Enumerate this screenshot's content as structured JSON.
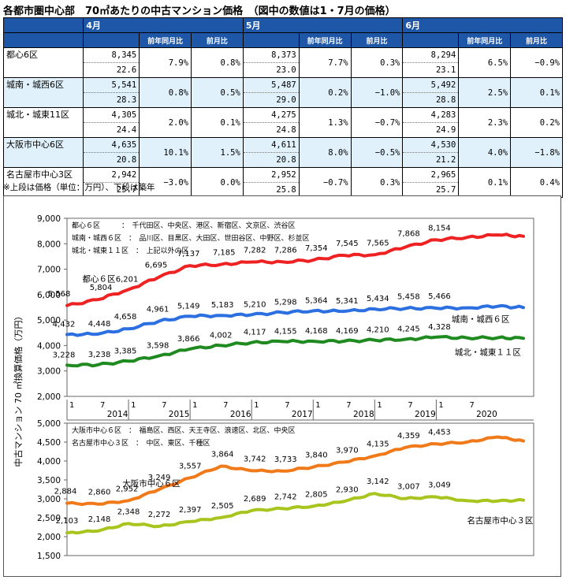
{
  "title": "各都市圏中心部　70㎡あたりの中古マンション価格　（図中の数値は1・7月の価格）",
  "note": "※上段は価格（単位：万円）、下段は築年",
  "table": {
    "months": [
      "4月",
      "5月",
      "6月"
    ],
    "sub_headers": [
      "前年同月比",
      "前月比"
    ],
    "rows": [
      {
        "name": "都心6区",
        "cells": [
          [
            "8,345",
            "22.6",
            "7.9%",
            "0.8%"
          ],
          [
            "8,373",
            "23.0",
            "7.7%",
            "0.3%"
          ],
          [
            "8,294",
            "23.1",
            "6.5%",
            "−0.9%"
          ]
        ]
      },
      {
        "name": "城南・城西6区",
        "cells": [
          [
            "5,541",
            "28.3",
            "0.8%",
            "0.5%"
          ],
          [
            "5,487",
            "29.0",
            "0.2%",
            "−1.0%"
          ],
          [
            "5,492",
            "28.8",
            "2.5%",
            "0.1%"
          ]
        ]
      },
      {
        "name": "城北・城東11区",
        "cells": [
          [
            "4,305",
            "24.4",
            "2.0%",
            "0.1%"
          ],
          [
            "4,275",
            "24.8",
            "1.3%",
            "−0.7%"
          ],
          [
            "4,283",
            "24.9",
            "2.3%",
            "0.2%"
          ]
        ]
      },
      {
        "name": "大阪市中心6区",
        "cells": [
          [
            "4,635",
            "20.8",
            "10.1%",
            "1.5%"
          ],
          [
            "4,611",
            "20.8",
            "8.0%",
            "−0.5%"
          ],
          [
            "4,530",
            "21.2",
            "4.0%",
            "−1.8%"
          ]
        ]
      },
      {
        "name": "名古屋市中心3区",
        "cells": [
          [
            "2,942",
            "25.7",
            "−3.0%",
            "0.0%"
          ],
          [
            "2,952",
            "25.8",
            "−0.7%",
            "0.3%"
          ],
          [
            "2,965",
            "25.7",
            "0.1%",
            "0.4%"
          ]
        ]
      }
    ]
  },
  "chart": {
    "ylabel": "中古マンション 70 ㎡換算価格（万円）"
  },
  "chart_data": [
    {
      "type": "line",
      "ylim": [
        2000,
        9000
      ],
      "yticks": [
        "2,000",
        "3,000",
        "4,000",
        "5,000",
        "6,000",
        "7,000",
        "8,000",
        "9,000"
      ],
      "xlim": [
        2013.0,
        2020.583
      ],
      "x_tick_month_labels": [
        "1",
        "7",
        "1",
        "7",
        "1",
        "7",
        "1",
        "7",
        "1",
        "7",
        "1",
        "7",
        "1",
        "7"
      ],
      "x_year_labels": [
        "2014",
        "2015",
        "2016",
        "2017",
        "2018",
        "2019",
        "2020"
      ],
      "legend_lines": [
        "都心６区　　　：　千代田区、中央区、港区、新宿区、文京区、渋谷区",
        "城南・城西６区　：　品川区、目黒区、大田区、世田谷区、中野区、杉並区",
        "城北・城東１１区　：　上記以外の区"
      ],
      "series": [
        {
          "name": "都心６区",
          "color": "#ee2222",
          "labels": [
            "5,568",
            "5,804",
            "6,201",
            "6,695",
            "7,137",
            "7,185",
            "7,282",
            "7,286",
            "7,354",
            "7,545",
            "7,565",
            "7,868",
            "8,154"
          ],
          "x": [
            2013.0,
            2013.5,
            2014.0,
            2014.5,
            2015.0,
            2015.5,
            2016.0,
            2016.5,
            2017.0,
            2017.5,
            2018.0,
            2018.5,
            2019.0,
            2019.5,
            2020.0,
            2020.417
          ],
          "y": [
            5568,
            5804,
            6201,
            6695,
            7137,
            7185,
            7282,
            7286,
            7354,
            7545,
            7565,
            7868,
            8154,
            8250,
            8345,
            8294
          ]
        },
        {
          "name": "城南・城西６区",
          "color": "#2b6fe0",
          "labels": [
            "4,432",
            "4,448",
            "4,658",
            "4,961",
            "5,149",
            "5,183",
            "5,210",
            "5,298",
            "5,364",
            "5,341",
            "5,434",
            "5,458",
            "5,466"
          ],
          "x": [
            2013.0,
            2013.5,
            2014.0,
            2014.5,
            2015.0,
            2015.5,
            2016.0,
            2016.5,
            2017.0,
            2017.5,
            2018.0,
            2018.5,
            2019.0,
            2019.5,
            2020.0,
            2020.417
          ],
          "y": [
            4432,
            4448,
            4658,
            4961,
            5149,
            5183,
            5210,
            5298,
            5364,
            5341,
            5434,
            5458,
            5466,
            5480,
            5541,
            5492
          ]
        },
        {
          "name": "城北・城東１１区",
          "color": "#1f8a1f",
          "labels": [
            "3,228",
            "3,238",
            "3,385",
            "3,598",
            "3,866",
            "4,002",
            "4,117",
            "4,155",
            "4,168",
            "4,169",
            "4,210",
            "4,245",
            "4,328"
          ],
          "x": [
            2013.0,
            2013.5,
            2014.0,
            2014.5,
            2015.0,
            2015.5,
            2016.0,
            2016.5,
            2017.0,
            2017.5,
            2018.0,
            2018.5,
            2019.0,
            2019.5,
            2020.0,
            2020.417
          ],
          "y": [
            3228,
            3238,
            3385,
            3598,
            3866,
            4002,
            4117,
            4155,
            4168,
            4169,
            4210,
            4245,
            4328,
            4300,
            4305,
            4283
          ]
        }
      ]
    },
    {
      "type": "line",
      "ylim": [
        1500,
        5000
      ],
      "yticks": [
        "1,500",
        "2,000",
        "2,500",
        "3,000",
        "3,500",
        "4,000",
        "4,500",
        "5,000"
      ],
      "xlim": [
        2013.0,
        2020.583
      ],
      "legend_lines": [
        "大阪市中心６区　：　福島区、西区、天王寺区、浪速区、北区、中央区",
        "名古屋市中心３区　：　中区、東区、千種区"
      ],
      "series": [
        {
          "name": "大阪市中心６区",
          "color": "#f07a1a",
          "labels": [
            "2,884",
            "2,860",
            "2,952",
            "3,249",
            "3,557",
            "3,864",
            "3,742",
            "3,733",
            "3,840",
            "3,970",
            "4,135",
            "4,359",
            "4,453"
          ],
          "x": [
            2013.0,
            2013.5,
            2014.0,
            2014.5,
            2015.0,
            2015.5,
            2016.0,
            2016.5,
            2017.0,
            2017.5,
            2018.0,
            2018.5,
            2019.0,
            2019.5,
            2020.0,
            2020.417
          ],
          "y": [
            2884,
            2860,
            2952,
            3249,
            3557,
            3864,
            3742,
            3733,
            3840,
            3970,
            4135,
            4359,
            4453,
            4500,
            4635,
            4530
          ]
        },
        {
          "name": "名古屋市中心３区",
          "color": "#a8c41e",
          "labels": [
            "2,103",
            "2,148",
            "2,348",
            "2,272",
            "2,397",
            "2,505",
            "2,689",
            "2,742",
            "2,805",
            "2,930",
            "3,142",
            "3,007",
            "3,049"
          ],
          "x": [
            2013.0,
            2013.5,
            2014.0,
            2014.5,
            2015.0,
            2015.5,
            2016.0,
            2016.5,
            2017.0,
            2017.5,
            2018.0,
            2018.5,
            2019.0,
            2019.5,
            2020.0,
            2020.417
          ],
          "y": [
            2103,
            2148,
            2348,
            2272,
            2397,
            2505,
            2689,
            2742,
            2805,
            2930,
            3142,
            3007,
            3049,
            2950,
            2942,
            2965
          ]
        }
      ]
    }
  ]
}
